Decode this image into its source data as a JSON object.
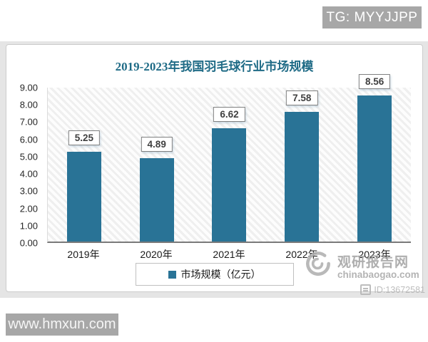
{
  "overlays": {
    "top_badge": "TG: MYYJJPP",
    "bottom_badge": "www.hmxun.com"
  },
  "watermark": {
    "site_name": "观研报告网",
    "site_url": "chinabaogao.com",
    "id_label": "ID:13672581"
  },
  "chart_data": {
    "type": "bar",
    "title": "2019-2023年我国羽毛球行业市场规模",
    "categories": [
      "2019年",
      "2020年",
      "2021年",
      "2022年",
      "2023年"
    ],
    "values": [
      5.25,
      4.89,
      6.62,
      7.58,
      8.56
    ],
    "value_labels": [
      "5.25",
      "4.89",
      "6.62",
      "7.58",
      "8.56"
    ],
    "legend": "市场规模（亿元）",
    "xlabel": "",
    "ylabel": "",
    "ylim": [
      0,
      9
    ],
    "yticks": [
      "9.00",
      "8.00",
      "7.00",
      "6.00",
      "5.00",
      "4.00",
      "3.00",
      "2.00",
      "1.00",
      "0.00"
    ],
    "grid": false,
    "legend_position": "bottom",
    "bar_color": "#297396",
    "title_color": "#1f6b86",
    "plot_background": "diagonal-hatch"
  }
}
